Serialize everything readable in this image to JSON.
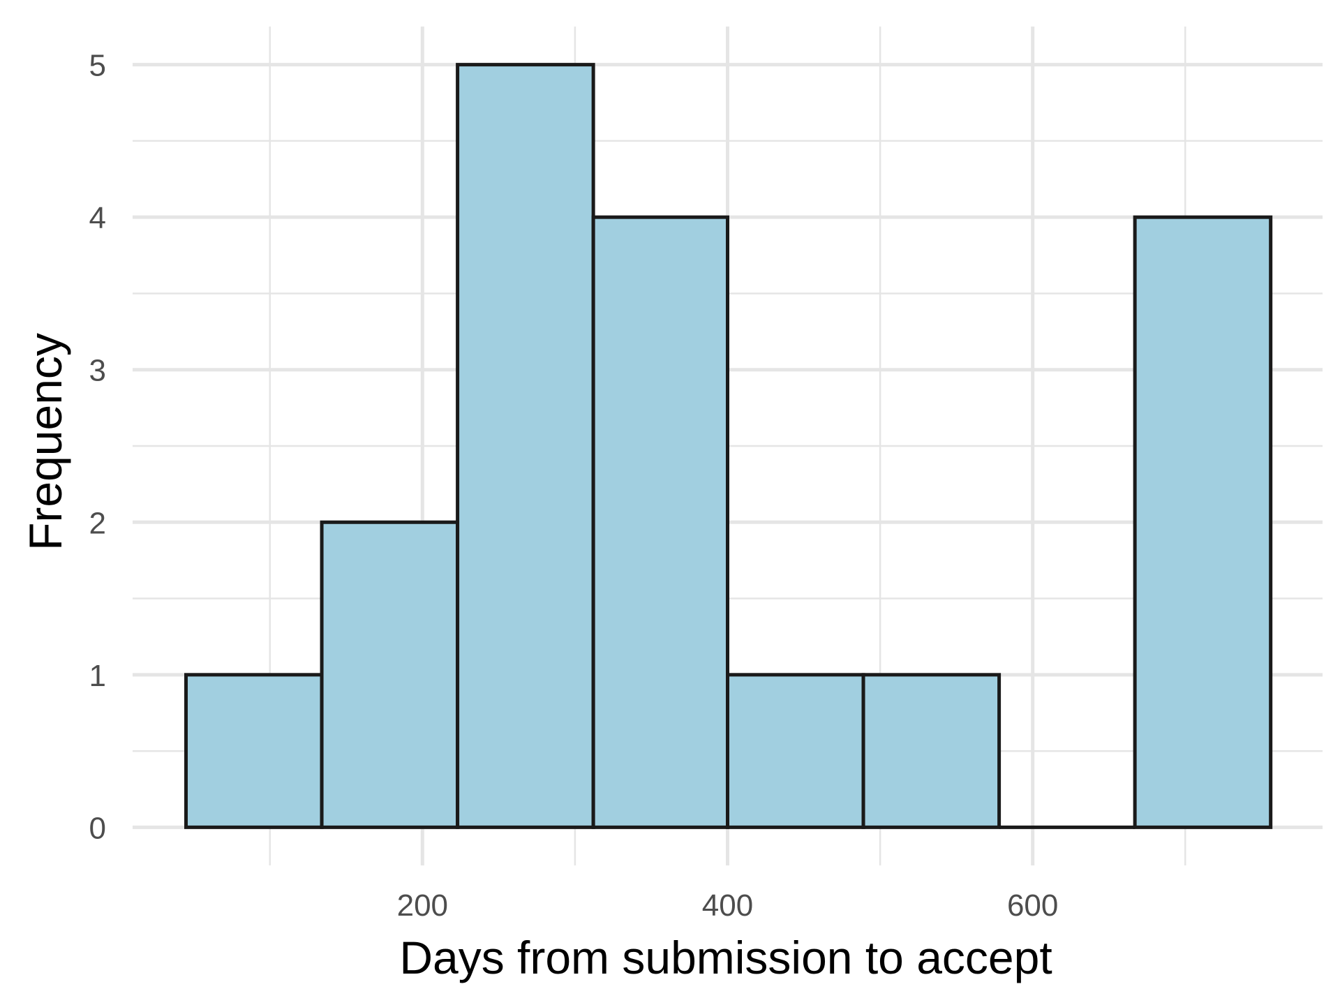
{
  "chart_data": {
    "type": "bar",
    "subtype": "histogram",
    "title": "",
    "xlabel": "Days from submission to accept",
    "ylabel": "Frequency",
    "bins": [
      {
        "start": 45,
        "end": 134,
        "count": 1
      },
      {
        "start": 134,
        "end": 223,
        "count": 2
      },
      {
        "start": 223,
        "end": 312,
        "count": 5
      },
      {
        "start": 312,
        "end": 400,
        "count": 4
      },
      {
        "start": 400,
        "end": 489,
        "count": 1
      },
      {
        "start": 489,
        "end": 578,
        "count": 1
      },
      {
        "start": 578,
        "end": 667,
        "count": 0
      },
      {
        "start": 667,
        "end": 756,
        "count": 4
      }
    ],
    "xlim": [
      10,
      790
    ],
    "ylim": [
      -0.25,
      5.25
    ],
    "x_ticks": [
      200,
      400,
      600
    ],
    "x_tick_labels": [
      "200",
      "400",
      "600"
    ],
    "y_ticks": [
      0,
      1,
      2,
      3,
      4,
      5
    ],
    "y_tick_labels": [
      "0",
      "1",
      "2",
      "3",
      "4",
      "5"
    ],
    "grid": true,
    "legend": "none",
    "colors": {
      "bar_fill": "#a1cfe0",
      "bar_stroke": "#1a1a1a",
      "grid": "#e5e5e5",
      "background": "#ffffff"
    }
  }
}
